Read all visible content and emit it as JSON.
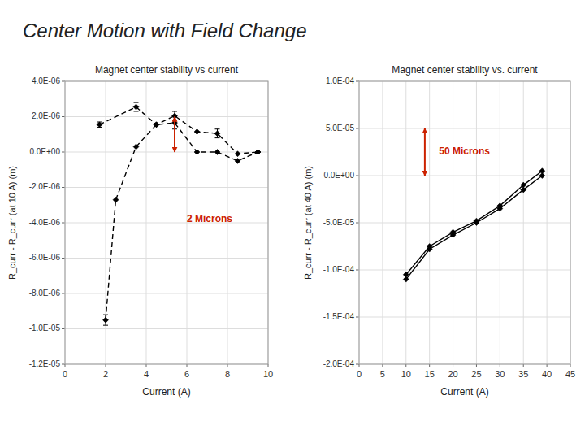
{
  "title": "Center Motion with Field Change",
  "chart_data": [
    {
      "type": "line",
      "title": "Magnet center stability vs current",
      "xlabel": "Current (A)",
      "ylabel": "R_curr - R_curr (at 10 A) (m)",
      "xlim": [
        0,
        10
      ],
      "ylim": [
        -1.2e-05,
        4e-06
      ],
      "xticks": [
        0,
        2,
        4,
        6,
        8,
        10
      ],
      "yticks": [
        {
          "value": 4e-06,
          "label": "4.0E-06"
        },
        {
          "value": 2e-06,
          "label": "2.0E-06"
        },
        {
          "value": 0,
          "label": "0.0E+00"
        },
        {
          "value": -2e-06,
          "label": "-2.0E-06"
        },
        {
          "value": -4e-06,
          "label": "-4.0E-06"
        },
        {
          "value": -6e-06,
          "label": "-6.0E-06"
        },
        {
          "value": -8e-06,
          "label": "-8.0E-06"
        },
        {
          "value": -1e-05,
          "label": "-1.0E-05"
        },
        {
          "value": -1.2e-05,
          "label": "-1.2E-05"
        }
      ],
      "grid": true,
      "series": [
        {
          "x": [
            1.7,
            3.5,
            4.5,
            5.4,
            6.5,
            7.5,
            8.5,
            9.5
          ],
          "values": [
            1.55e-06,
            2.55e-06,
            1.55e-06,
            2.05e-06,
            1.15e-06,
            1.05e-06,
            -1e-07,
            0.0
          ],
          "errors": [
            1.5e-07,
            2.5e-07,
            null,
            2.5e-07,
            null,
            2.5e-07,
            null,
            null
          ],
          "color": "#000000",
          "marker": "diamond",
          "line_style": "dashed"
        },
        {
          "x": [
            2.5,
            3.5,
            4.5,
            5.4,
            6.5,
            7.5,
            8.5,
            9.5
          ],
          "values": [
            -2.7e-06,
            3e-07,
            1.55e-06,
            1.65e-06,
            0.0,
            0.0,
            -5e-07,
            0.0
          ],
          "errors": [
            null,
            null,
            null,
            3.5e-07,
            null,
            null,
            null,
            null
          ],
          "color": "#000000",
          "marker": "diamond",
          "line_style": "dashed"
        },
        {
          "x": [
            2.0
          ],
          "values": [
            -9.5e-06
          ],
          "errors": [
            3e-07
          ],
          "color": "#000000",
          "marker": "diamond",
          "line_style": "none"
        },
        {
          "x": [
            2.0,
            2.5
          ],
          "values": [
            -9.5e-06,
            -2.7e-06
          ],
          "color": "#000000",
          "marker": "none",
          "line_style": "dashed"
        }
      ],
      "annotations": [
        {
          "text": "2 Microns",
          "x": 6.0,
          "y": -3.8e-06,
          "arrow_x": 5.4,
          "arrow_y1": 2e-06,
          "arrow_y2": 0.0,
          "color": "#CC2200"
        }
      ]
    },
    {
      "type": "line",
      "title": "Magnet center stability vs. current",
      "xlabel": "Current (A)",
      "ylabel": "R_curr - R_curr (at 40 A) (m)",
      "xlim": [
        0,
        45
      ],
      "ylim": [
        -0.0002,
        0.0001
      ],
      "xticks": [
        0,
        5,
        10,
        15,
        20,
        25,
        30,
        35,
        40,
        45
      ],
      "yticks": [
        {
          "value": 0.0001,
          "label": "1.0E-04"
        },
        {
          "value": 5e-05,
          "label": "5.0E-05"
        },
        {
          "value": 0.0,
          "label": "0.0E+00"
        },
        {
          "value": -5e-05,
          "label": "-5.0E-05"
        },
        {
          "value": -0.0001,
          "label": "-1.0E-04"
        },
        {
          "value": -0.00015,
          "label": "-1.5E-04"
        },
        {
          "value": -0.0002,
          "label": "-2.0E-04"
        }
      ],
      "grid": true,
      "series": [
        {
          "x": [
            10,
            15,
            20,
            25,
            30,
            35,
            39
          ],
          "values": [
            -0.00011,
            -7.8e-05,
            -6.3e-05,
            -5e-05,
            -3.5e-05,
            -1.5e-05,
            0.0
          ],
          "color": "#000000",
          "marker": "diamond",
          "line_style": "solid"
        },
        {
          "x": [
            10,
            15,
            20,
            25,
            30,
            35,
            39
          ],
          "values": [
            -0.000105,
            -7.5e-05,
            -6e-05,
            -4.8e-05,
            -3.2e-05,
            -1e-05,
            5e-06
          ],
          "color": "#000000",
          "marker": "diamond",
          "line_style": "solid"
        }
      ],
      "annotations": [
        {
          "text": "50 Microns",
          "x": 17,
          "y": 2.5e-05,
          "arrow_x": 14,
          "arrow_y1": 5e-05,
          "arrow_y2": 0.0,
          "color": "#CC2200"
        }
      ]
    }
  ]
}
